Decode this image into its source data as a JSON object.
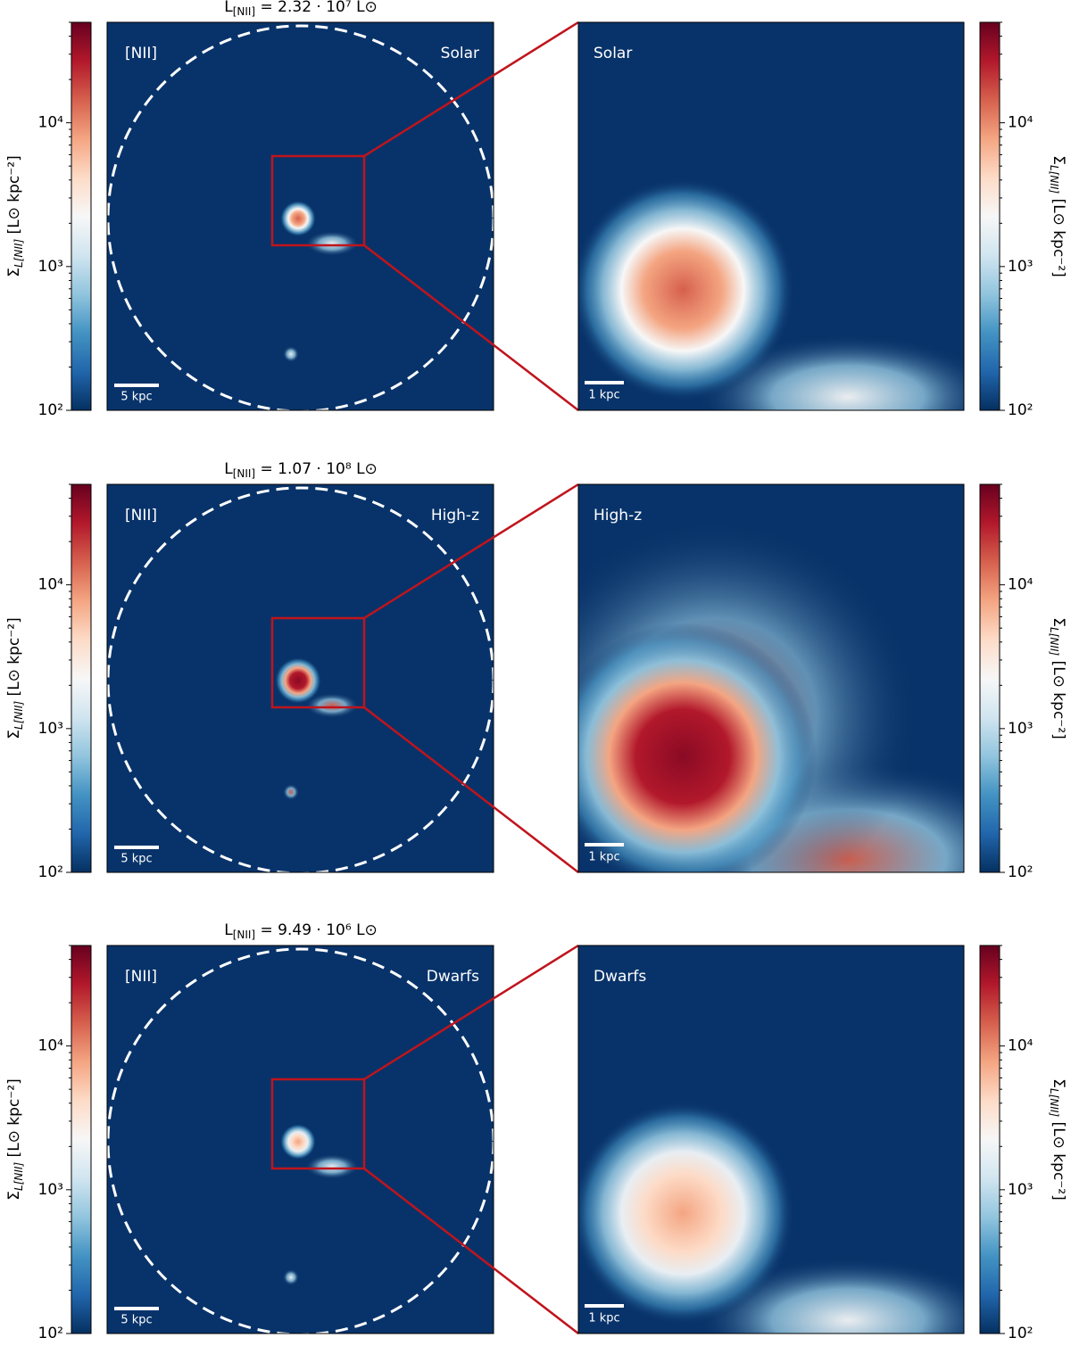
{
  "chart_data": {
    "type": "image-panels",
    "line_label": "[NII]",
    "scale_bar_wide": "5 kpc",
    "scale_bar_zoom": "1 kpc",
    "rows": [
      {
        "title": {
          "symbol": "L",
          "subscript": "[NII]",
          "rest": " = 2.32 · 10⁷ L⊙"
        },
        "model": "Solar"
      },
      {
        "title": {
          "symbol": "L",
          "subscript": "[NII]",
          "rest": " = 1.07 · 10⁸ L⊙"
        },
        "model": "High-z"
      },
      {
        "title": {
          "symbol": "L",
          "subscript": "[NII]",
          "rest": " = 9.49 · 10⁶ L⊙"
        },
        "model": "Dwarfs"
      }
    ],
    "colorbar": {
      "log": true,
      "ylim": [
        100,
        50000
      ],
      "yticks": [
        {
          "value": 100,
          "label": "10²"
        },
        {
          "value": 1000,
          "label": "10³"
        },
        {
          "value": 10000,
          "label": "10⁴"
        }
      ],
      "label": {
        "symbol": "Σ",
        "subscript": "L[NII]",
        "rest": " [L⊙ kpc⁻²]"
      },
      "colors": [
        "#053061",
        "#2166ac",
        "#4393c3",
        "#92c5de",
        "#d1e5f0",
        "#f7f7f7",
        "#fddbc7",
        "#f4a582",
        "#d6604d",
        "#b2182b",
        "#67001f"
      ]
    }
  }
}
